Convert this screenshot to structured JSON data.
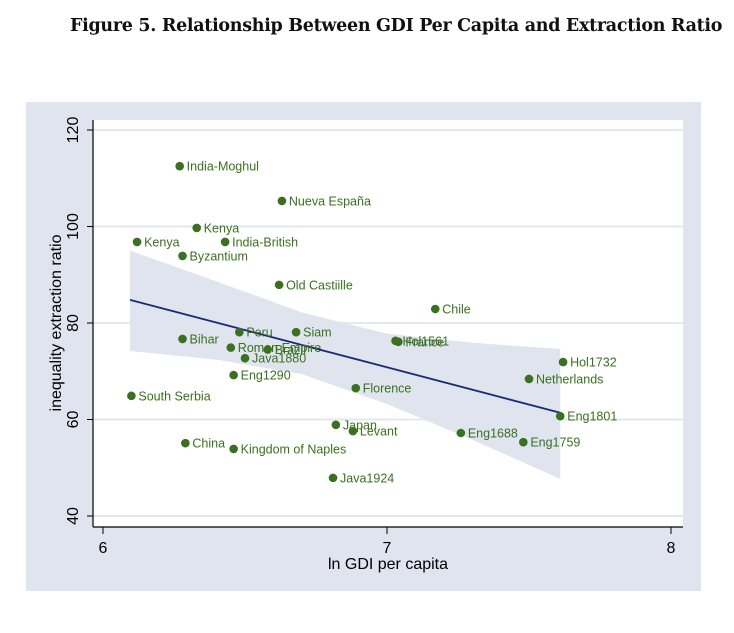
{
  "figure": {
    "title": "Figure 5. Relationship Between GDI Per Capita and Extraction Ratio"
  },
  "colors": {
    "outer_background": "#dfe4ee",
    "plot_background": "#ffffff",
    "gridline": "#e2e8f0",
    "point": "#3a7020",
    "fit_line": "#1a2a78",
    "ci_band": "#dfe4ee"
  },
  "chart_data": {
    "type": "scatter",
    "title": "Figure 5. Relationship Between GDI Per Capita and Extraction Ratio",
    "xlabel": "ln GDI per capita",
    "ylabel": "inequality extraction ratio",
    "xlim": [
      5.97,
      8.03
    ],
    "ylim": [
      37.8,
      122
    ],
    "xticks": [
      6,
      7,
      8
    ],
    "yticks": [
      40,
      60,
      80,
      100,
      120
    ],
    "grid": "horizontal",
    "legend": "none",
    "points": [
      {
        "label": "India-Moghul",
        "x": 6.27,
        "y": 112.5
      },
      {
        "label": "Nueva España",
        "x": 6.63,
        "y": 105.3
      },
      {
        "label": "Kenya",
        "x": 6.33,
        "y": 99.7
      },
      {
        "label": "Kenya",
        "x": 6.12,
        "y": 96.8
      },
      {
        "label": "India-British",
        "x": 6.43,
        "y": 96.8
      },
      {
        "label": "Byzantium",
        "x": 6.28,
        "y": 93.9
      },
      {
        "label": "Old Castiille",
        "x": 6.62,
        "y": 87.9
      },
      {
        "label": "Chile",
        "x": 7.17,
        "y": 82.9
      },
      {
        "label": "Peru",
        "x": 6.48,
        "y": 78.1
      },
      {
        "label": "Siam",
        "x": 6.68,
        "y": 78.1
      },
      {
        "label": "Bihar",
        "x": 6.28,
        "y": 76.7
      },
      {
        "label": "Hol1561",
        "x": 7.03,
        "y": 76.3
      },
      {
        "label": "France",
        "x": 7.04,
        "y": 76.1
      },
      {
        "label": "Roman Empire",
        "x": 6.45,
        "y": 74.9
      },
      {
        "label": "Brazil",
        "x": 6.58,
        "y": 74.5
      },
      {
        "label": "Java1880",
        "x": 6.5,
        "y": 72.7
      },
      {
        "label": "Hol1732",
        "x": 7.62,
        "y": 71.9
      },
      {
        "label": "Eng1290",
        "x": 6.46,
        "y": 69.2
      },
      {
        "label": "Netherlands",
        "x": 7.5,
        "y": 68.4
      },
      {
        "label": "Florence",
        "x": 6.89,
        "y": 66.5
      },
      {
        "label": "South Serbia",
        "x": 6.1,
        "y": 64.9
      },
      {
        "label": "Eng1801",
        "x": 7.61,
        "y": 60.7
      },
      {
        "label": "Japan",
        "x": 6.82,
        "y": 58.9
      },
      {
        "label": "Levant",
        "x": 6.88,
        "y": 57.6
      },
      {
        "label": "Eng1688",
        "x": 7.26,
        "y": 57.2
      },
      {
        "label": "Eng1759",
        "x": 7.48,
        "y": 55.3
      },
      {
        "label": "China",
        "x": 6.29,
        "y": 55.1
      },
      {
        "label": "Kingdom of Naples",
        "x": 6.46,
        "y": 53.9
      },
      {
        "label": "Java1924",
        "x": 6.81,
        "y": 47.9
      }
    ],
    "fit_line": {
      "x": [
        6.095,
        7.61
      ],
      "y": [
        84.8,
        61.4
      ]
    },
    "confidence_band": {
      "x": [
        6.095,
        6.4,
        6.7,
        7.0,
        7.3,
        7.61
      ],
      "upper": [
        95.0,
        88.6,
        82.2,
        77.8,
        75.9,
        74.6
      ],
      "lower": [
        74.2,
        72.4,
        69.4,
        63.2,
        55.8,
        47.7
      ]
    }
  }
}
